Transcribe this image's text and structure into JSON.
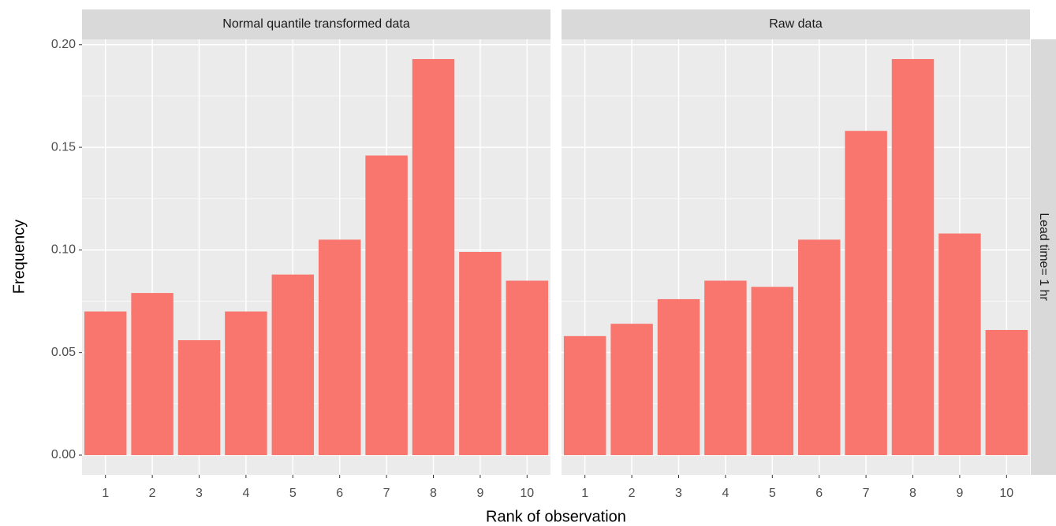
{
  "y_label": "Frequency",
  "x_label": "Rank of observation",
  "row_strip": "Lead time= 1 hr",
  "chart_data": [
    {
      "type": "bar",
      "title": "Normal quantile transformed data",
      "categories": [
        "1",
        "2",
        "3",
        "4",
        "5",
        "6",
        "7",
        "8",
        "9",
        "10"
      ],
      "values": [
        0.07,
        0.079,
        0.056,
        0.07,
        0.088,
        0.105,
        0.146,
        0.193,
        0.099,
        0.085
      ],
      "color": "#f8766d",
      "ylim": [
        -0.0096,
        0.2026
      ],
      "yticks": [
        {
          "value": 0,
          "label": "0.00"
        },
        0.05,
        {
          "value": 0.1,
          "label": "0.10"
        },
        0.15,
        {
          "value": 0.2,
          "label": "0.20"
        }
      ],
      "grid": true
    },
    {
      "type": "bar",
      "title": "Raw data",
      "categories": [
        "1",
        "2",
        "3",
        "4",
        "5",
        "6",
        "7",
        "8",
        "9",
        "10"
      ],
      "values": [
        0.058,
        0.064,
        0.076,
        0.085,
        0.082,
        0.105,
        0.158,
        0.193,
        0.108,
        0.061
      ],
      "color": "#f8766d",
      "ylim": [
        -0.0096,
        0.2026
      ],
      "yticks": [
        {
          "value": 0,
          "label": "0.00"
        },
        0.05,
        {
          "value": 0.1,
          "label": "0.10"
        },
        0.15,
        {
          "value": 0.2,
          "label": "0.20"
        }
      ],
      "grid": true
    }
  ]
}
